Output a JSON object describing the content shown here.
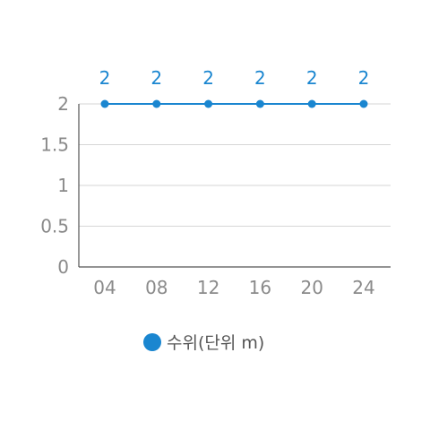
{
  "chart_data": {
    "type": "line",
    "x": [
      "04",
      "08",
      "12",
      "16",
      "20",
      "24"
    ],
    "series": [
      {
        "name": "수위(단위 m)",
        "values": [
          2,
          2,
          2,
          2,
          2,
          2
        ]
      }
    ],
    "ylim": [
      0,
      2
    ],
    "yticks": [
      "0",
      "0.5",
      "1",
      "1.5",
      "2"
    ],
    "grid": true,
    "legend": "bottom",
    "data_labels": true
  },
  "colors": {
    "series": "#1a86d0",
    "grid": "#d6d6d6",
    "axis": "#555555",
    "tick_text": "#8a8a8a"
  }
}
